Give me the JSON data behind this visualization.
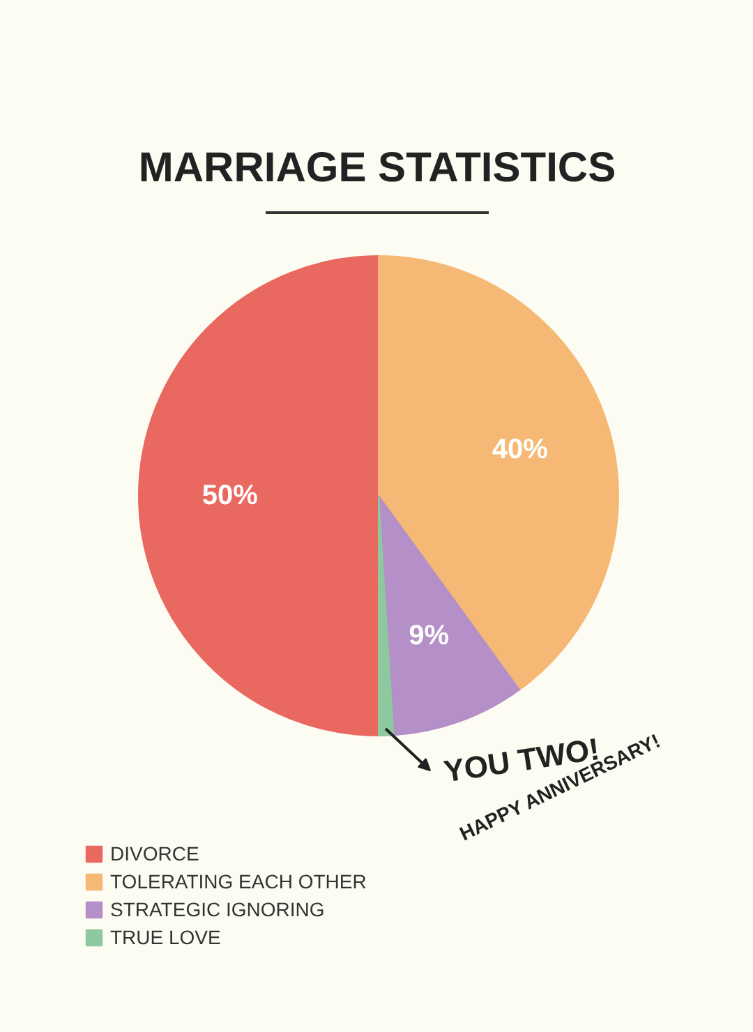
{
  "chart_data": {
    "type": "pie",
    "title": "MARRIAGE STATISTICS",
    "categories": [
      "DIVORCE",
      "TOLERATING EACH OTHER",
      "STRATEGIC IGNORING",
      "TRUE LOVE"
    ],
    "values": [
      50,
      40,
      9,
      1
    ],
    "colors": [
      "#e9685f",
      "#f5b975",
      "#b58fc7",
      "#8ec89f"
    ],
    "value_labels": [
      "50%",
      "40%",
      "9%",
      null
    ],
    "legend": "bottom left",
    "annotations": [
      "YOU TWO!",
      "HAPPY ANNIVERSARY!"
    ]
  }
}
